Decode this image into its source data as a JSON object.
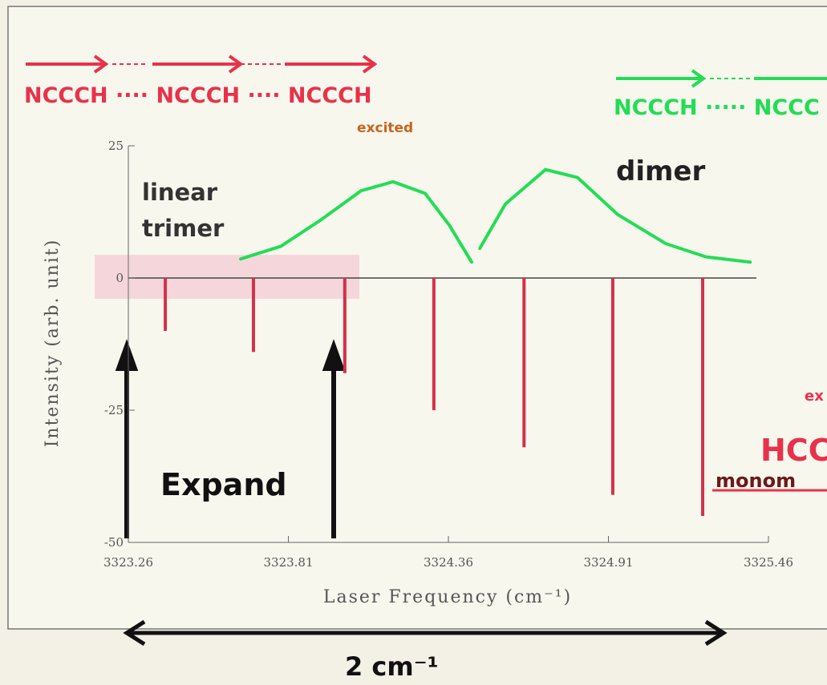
{
  "chart_data": {
    "type": "stick_spectrum",
    "x_label": "Laser Frequency (cm⁻¹)",
    "y_label": "Intensity (arb. unit)",
    "xlim": [
      3323.26,
      3325.46
    ],
    "xticks": [
      3323.26,
      3323.81,
      3324.36,
      3324.91,
      3325.46
    ],
    "ylim": [
      -50,
      25
    ],
    "yticks": [
      25,
      0,
      -25,
      -50
    ],
    "series": [
      {
        "name": "dimer",
        "color": "#22dd55",
        "style": "line",
        "x": [
          3323.646,
          3323.784,
          3323.922,
          3324.06,
          3324.17,
          3324.28,
          3324.363,
          3324.44,
          null,
          3324.468,
          3324.556,
          3324.694,
          3324.804,
          3324.942,
          3325.107,
          3325.245,
          3325.397
        ],
        "values": [
          3.6,
          6,
          11,
          16.5,
          18.2,
          16,
          10,
          3,
          null,
          5.6,
          14,
          20.5,
          19,
          12,
          6.5,
          4,
          3
        ]
      },
      {
        "name": "monom",
        "color": "#d6304a",
        "style": "stick",
        "x": [
          3323.387,
          3323.69,
          3324.004,
          3324.31,
          3324.62,
          3324.925,
          3325.234
        ],
        "values": [
          -10,
          -14,
          -18,
          -25,
          -32,
          -41,
          -45
        ]
      }
    ],
    "annotations": [
      "NCCCH ···· NCCCH ···· NCCCH",
      "excited",
      "NCCCH ····· NCCC",
      "linear",
      "trimer",
      "ex",
      "HCC",
      "Expand",
      "2 cm⁻¹"
    ]
  }
}
